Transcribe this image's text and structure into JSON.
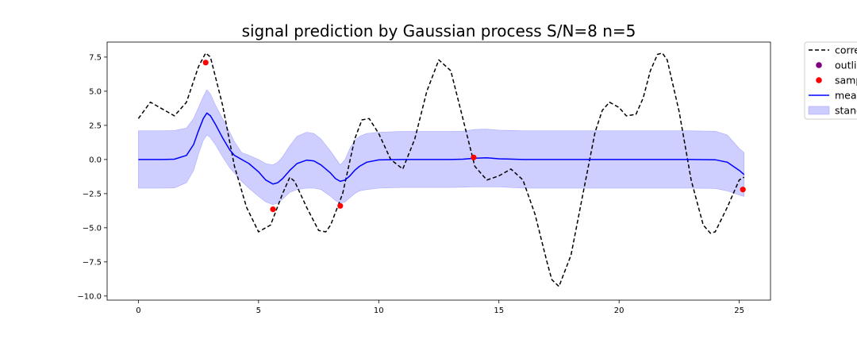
{
  "chart_data": {
    "type": "line",
    "title": "signal prediction by Gaussian process S/N=8 n=5",
    "xlabel": "",
    "ylabel": "",
    "xlim": [
      -1.3,
      26.3
    ],
    "ylim": [
      -10.3,
      8.6
    ],
    "x_ticks": [
      0,
      5,
      10,
      15,
      20,
      25
    ],
    "x_tick_labels": [
      "0",
      "5",
      "10",
      "15",
      "20",
      "25"
    ],
    "y_ticks": [
      7.5,
      5.0,
      2.5,
      0.0,
      -2.5,
      -5.0,
      -7.5,
      -10.0
    ],
    "y_tick_labels": [
      "7.5",
      "5.0",
      "2.5",
      "0.0",
      "−2.5",
      "−5.0",
      "−7.5",
      "−10.0"
    ],
    "grid": false,
    "legend_position": "outside-top-right",
    "legend": [
      {
        "label": "corre",
        "kind": "dashed-line",
        "color": "#000000"
      },
      {
        "label": "outlie",
        "kind": "marker",
        "color": "#800080"
      },
      {
        "label": "samp",
        "kind": "marker",
        "color": "#ff0000"
      },
      {
        "label": "mean",
        "kind": "line",
        "color": "#0000ff"
      },
      {
        "label": "stand",
        "kind": "band",
        "color": "#ccccff"
      }
    ],
    "series": [
      {
        "kind": "dashed-line",
        "color": "#000000",
        "x": [
          0,
          0.5,
          1,
          1.5,
          2,
          2.5,
          2.8,
          3,
          3.5,
          4,
          4.5,
          5,
          5.5,
          6,
          6.3,
          6.5,
          7,
          7.5,
          7.8,
          8,
          8.5,
          9,
          9.3,
          9.6,
          10,
          10.5,
          11,
          11.5,
          12,
          12.5,
          13,
          13.5,
          14,
          14.5,
          15,
          15.5,
          16,
          16.5,
          17,
          17.2,
          17.5,
          18,
          18.5,
          19,
          19.3,
          19.6,
          20,
          20.3,
          20.7,
          21,
          21.3,
          21.6,
          21.8,
          22,
          22.5,
          23,
          23.5,
          23.8,
          24,
          24.5,
          25,
          25.2
        ],
        "y": [
          3,
          4.2,
          3.7,
          3.2,
          4.2,
          6.8,
          7.8,
          7.5,
          4,
          -0.5,
          -3.5,
          -5.3,
          -4.8,
          -2.5,
          -1.3,
          -1.6,
          -3.5,
          -5.2,
          -5.3,
          -4.8,
          -2.5,
          1.5,
          2.9,
          3,
          1.9,
          0,
          -0.7,
          1.5,
          5,
          7.3,
          6.5,
          3,
          -0.5,
          -1.5,
          -1.2,
          -0.7,
          -1.5,
          -4,
          -7.5,
          -8.8,
          -9.3,
          -7,
          -2.5,
          2,
          3.6,
          4.2,
          3.8,
          3.2,
          3.3,
          4.5,
          6.5,
          7.7,
          7.8,
          7.3,
          3.5,
          -1.5,
          -4.8,
          -5.4,
          -5.3,
          -3.5,
          -1.5,
          -1.3
        ]
      },
      {
        "kind": "line",
        "color": "#0000ff",
        "x": [
          0,
          1,
          1.5,
          2,
          2.3,
          2.5,
          2.7,
          2.85,
          3,
          3.2,
          3.5,
          3.8,
          4,
          4.3,
          4.6,
          5,
          5.3,
          5.6,
          5.8,
          6,
          6.3,
          6.6,
          7,
          7.3,
          7.6,
          8,
          8.2,
          8.4,
          8.6,
          8.8,
          9,
          9.2,
          9.5,
          10,
          11,
          12,
          13,
          13.5,
          14,
          14.5,
          15,
          16,
          18,
          20,
          22,
          23,
          24,
          24.5,
          25,
          25.2
        ],
        "y": [
          0,
          0,
          0.02,
          0.3,
          1.1,
          2.1,
          3.0,
          3.4,
          3.2,
          2.6,
          1.6,
          0.7,
          0.3,
          0,
          -0.3,
          -0.9,
          -1.5,
          -1.8,
          -1.7,
          -1.4,
          -0.8,
          -0.3,
          -0.05,
          -0.1,
          -0.4,
          -1.0,
          -1.4,
          -1.6,
          -1.5,
          -1.2,
          -0.8,
          -0.5,
          -0.2,
          -0.03,
          0,
          0,
          0,
          0.02,
          0.1,
          0.12,
          0.05,
          0,
          0,
          0,
          0,
          0,
          -0.02,
          -0.2,
          -0.8,
          -1.1
        ]
      }
    ],
    "band": {
      "color": "#ccccff",
      "x": [
        0,
        1,
        1.5,
        2,
        2.3,
        2.5,
        2.7,
        2.85,
        3,
        3.2,
        3.5,
        3.8,
        4,
        4.3,
        4.6,
        5,
        5.3,
        5.6,
        5.8,
        6,
        6.3,
        6.6,
        7,
        7.3,
        7.6,
        8,
        8.2,
        8.4,
        8.6,
        8.8,
        9,
        9.2,
        9.5,
        10,
        11,
        12,
        13,
        13.5,
        14,
        14.5,
        15,
        16,
        18,
        20,
        22,
        23,
        24,
        24.5,
        25,
        25.2
      ],
      "upper": [
        2.1,
        2.1,
        2.12,
        2.3,
        3.0,
        3.8,
        4.6,
        5.1,
        4.8,
        4.0,
        3.0,
        2.0,
        1.3,
        0.5,
        0.3,
        0,
        -0.3,
        -0.4,
        -0.2,
        0.2,
        1.0,
        1.7,
        2.0,
        1.9,
        1.5,
        0.6,
        0.1,
        -0.4,
        0.0,
        0.8,
        1.4,
        1.7,
        1.9,
        2.0,
        2.05,
        2.05,
        2.05,
        2.07,
        2.2,
        2.22,
        2.15,
        2.1,
        2.1,
        2.1,
        2.1,
        2.1,
        2.07,
        1.8,
        0.8,
        0.5
      ],
      "lower": [
        -2.1,
        -2.1,
        -2.08,
        -1.7,
        -0.8,
        0.4,
        1.4,
        1.8,
        1.6,
        1.1,
        0.2,
        -0.6,
        -1.0,
        -1.6,
        -2.1,
        -2.7,
        -3.1,
        -3.3,
        -3.2,
        -2.9,
        -2.4,
        -2.2,
        -2.1,
        -2.1,
        -2.2,
        -2.7,
        -3.0,
        -3.2,
        -3.1,
        -2.8,
        -2.5,
        -2.3,
        -2.2,
        -2.1,
        -2.05,
        -2.05,
        -2.05,
        -2.03,
        -2.0,
        -2.0,
        -2.0,
        -2.1,
        -2.1,
        -2.1,
        -2.1,
        -2.1,
        -2.12,
        -2.3,
        -2.6,
        -2.7
      ]
    },
    "points": [
      {
        "series": "samp",
        "x": 2.8,
        "y": 7.1,
        "color": "#ff0000"
      },
      {
        "series": "samp",
        "x": 5.6,
        "y": -3.65,
        "color": "#ff0000"
      },
      {
        "series": "samp",
        "x": 8.4,
        "y": -3.4,
        "color": "#ff0000"
      },
      {
        "series": "samp",
        "x": 13.95,
        "y": 0.15,
        "color": "#ff0000"
      },
      {
        "series": "samp",
        "x": 25.15,
        "y": -2.2,
        "color": "#ff0000"
      }
    ]
  }
}
